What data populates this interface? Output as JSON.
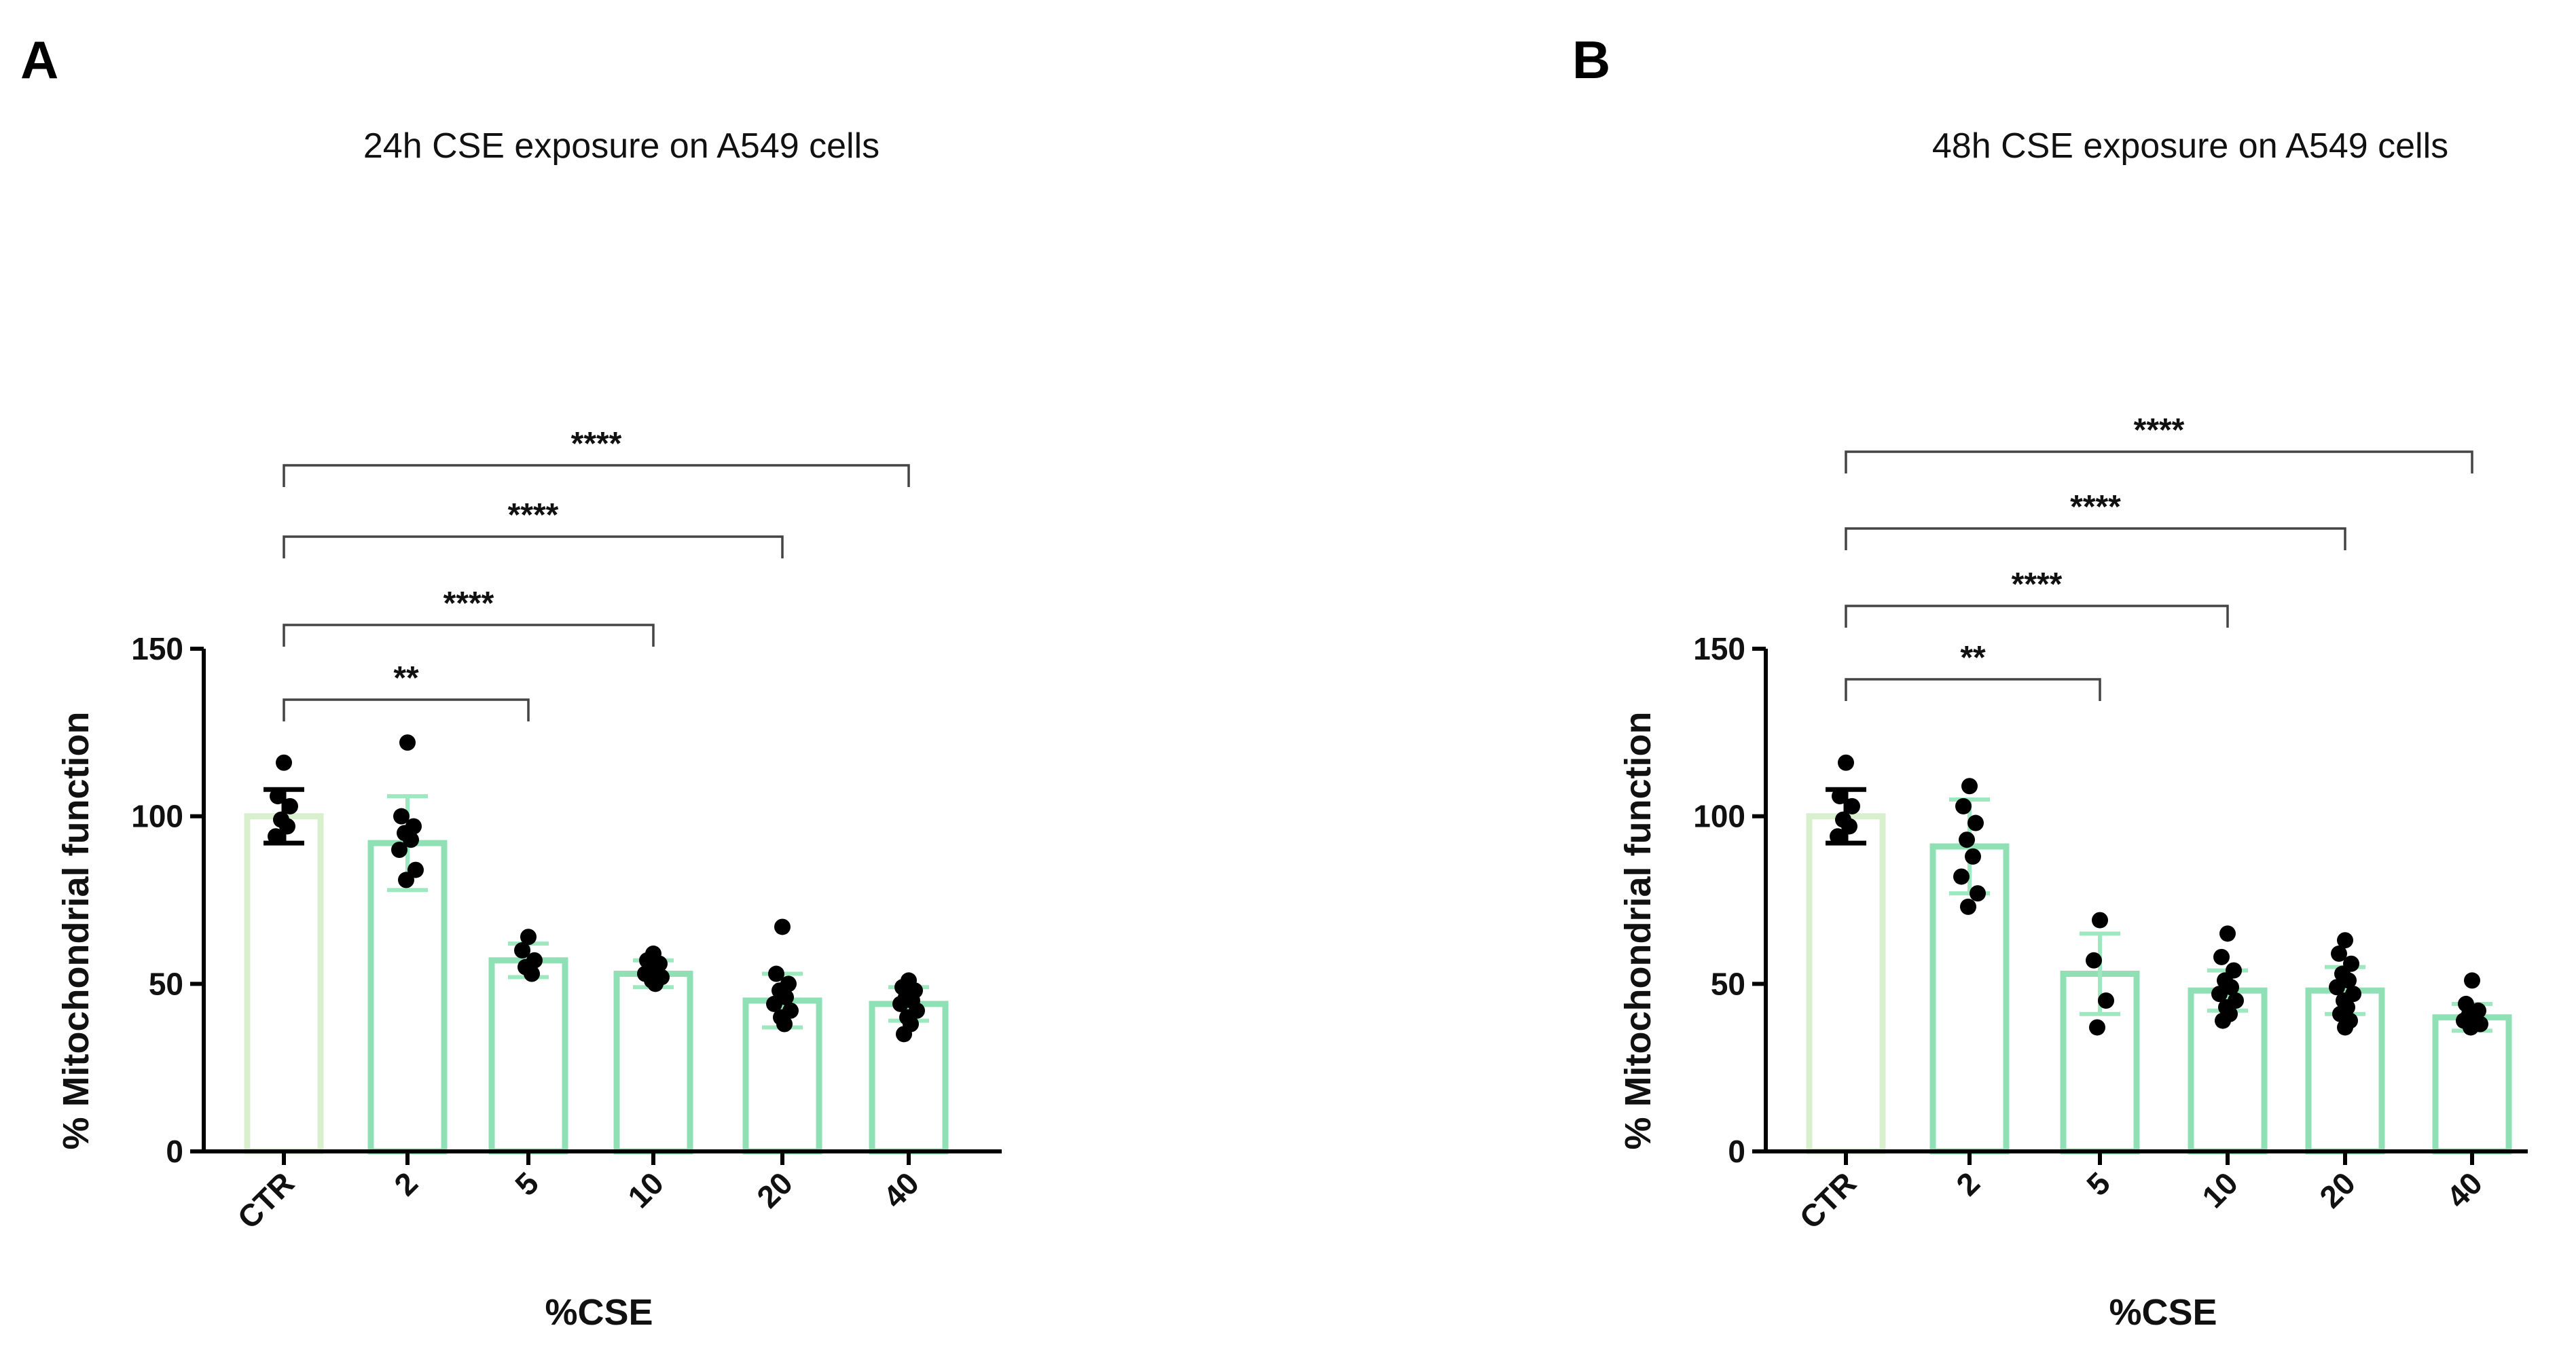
{
  "figure": {
    "panel_labels": [
      "A",
      "B"
    ]
  },
  "colors": {
    "bar_stroke": "#8fe0b4",
    "bar_stroke_ctr": "#d9f0cf",
    "errorbar": "#9ee8c0",
    "point": "#000000",
    "axis": "#000000",
    "bracket": "#444444"
  },
  "chart_data": [
    {
      "panel": "A",
      "type": "bar",
      "title": "24h CSE exposure on A549 cells",
      "xlabel": "%CSE",
      "ylabel": "% Mitochondrial function",
      "ylim": [
        0,
        150
      ],
      "yticks": [
        0,
        50,
        100,
        150
      ],
      "categories": [
        "CTR",
        "2",
        "5",
        "10",
        "20",
        "40"
      ],
      "values": [
        100,
        92,
        57,
        53,
        45,
        44
      ],
      "errors": [
        8,
        14,
        5,
        4,
        8,
        5
      ],
      "points": [
        [
          116,
          106,
          103,
          99,
          97,
          94
        ],
        [
          122,
          100,
          97,
          95,
          93,
          90,
          84,
          81
        ],
        [
          64,
          60,
          57,
          55,
          53
        ],
        [
          59,
          57,
          56,
          55,
          54,
          53,
          52,
          51,
          50
        ],
        [
          67,
          53,
          50,
          48,
          46,
          44,
          42,
          40,
          38
        ],
        [
          51,
          49,
          48,
          46,
          45,
          44,
          42,
          40,
          38,
          35
        ]
      ],
      "comparisons": [
        {
          "from": "CTR",
          "to": "5",
          "label": "**"
        },
        {
          "from": "CTR",
          "to": "10",
          "label": "****"
        },
        {
          "from": "CTR",
          "to": "20",
          "label": "****"
        },
        {
          "from": "CTR",
          "to": "40",
          "label": "****"
        }
      ]
    },
    {
      "panel": "B",
      "type": "bar",
      "title": "48h CSE exposure on A549 cells",
      "xlabel": "%CSE",
      "ylabel": "% Mitochondrial function",
      "ylim": [
        0,
        150
      ],
      "yticks": [
        0,
        50,
        100,
        150
      ],
      "categories": [
        "CTR",
        "2",
        "5",
        "10",
        "20",
        "40"
      ],
      "values": [
        100,
        91,
        53,
        48,
        48,
        40
      ],
      "errors": [
        8,
        14,
        12,
        6,
        7,
        4
      ],
      "points": [
        [
          116,
          106,
          103,
          99,
          97,
          94
        ],
        [
          109,
          103,
          98,
          93,
          88,
          82,
          77,
          73
        ],
        [
          69,
          57,
          45,
          37
        ],
        [
          65,
          58,
          54,
          51,
          49,
          47,
          45,
          43,
          41,
          39
        ],
        [
          63,
          59,
          56,
          53,
          51,
          49,
          47,
          45,
          43,
          41,
          39,
          37
        ],
        [
          51,
          44,
          42,
          41,
          40,
          39,
          38,
          37
        ]
      ],
      "comparisons": [
        {
          "from": "CTR",
          "to": "5",
          "label": "**"
        },
        {
          "from": "CTR",
          "to": "10",
          "label": "****"
        },
        {
          "from": "CTR",
          "to": "20",
          "label": "****"
        },
        {
          "from": "CTR",
          "to": "40",
          "label": "****"
        }
      ]
    }
  ]
}
